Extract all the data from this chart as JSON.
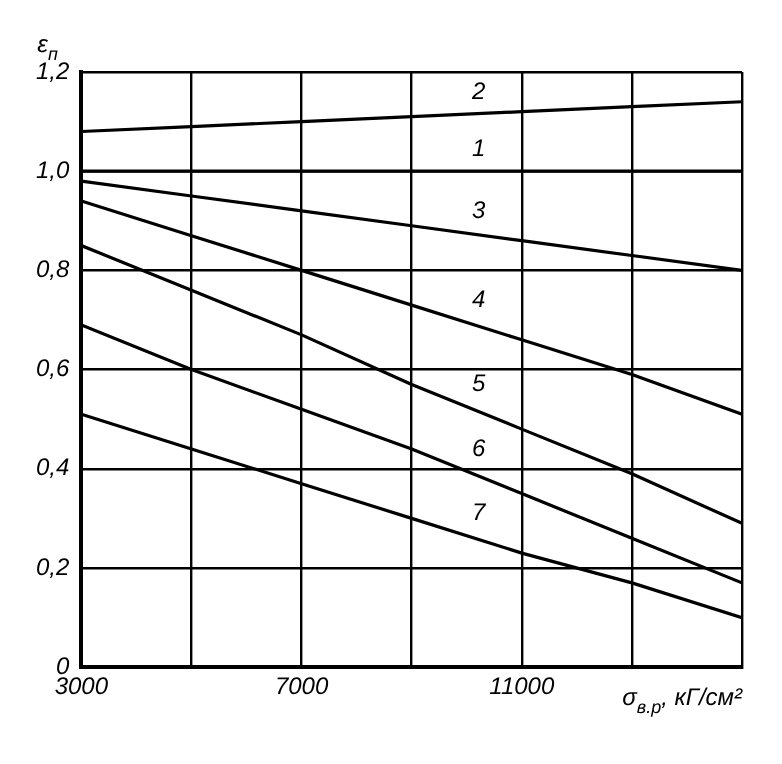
{
  "chart_data": {
    "type": "line",
    "xlabel": "σ$_{в.р}$, кГ/см²",
    "ylabel": "ε$_{п}$",
    "x": [
      3000,
      5000,
      7000,
      9000,
      11000,
      13000,
      15000
    ],
    "series": [
      {
        "name": "1",
        "color": "#000000",
        "values": [
          1.0,
          1.0,
          1.0,
          1.0,
          1.0,
          1.0,
          1.0
        ]
      },
      {
        "name": "2",
        "color": "#000000",
        "values": [
          1.08,
          1.09,
          1.1,
          1.11,
          1.12,
          1.13,
          1.14
        ]
      },
      {
        "name": "3",
        "color": "#000000",
        "values": [
          0.98,
          0.95,
          0.92,
          0.89,
          0.86,
          0.83,
          0.8
        ]
      },
      {
        "name": "4",
        "color": "#000000",
        "values": [
          0.94,
          0.87,
          0.8,
          0.73,
          0.66,
          0.59,
          0.51
        ]
      },
      {
        "name": "5",
        "color": "#000000",
        "values": [
          0.85,
          0.76,
          0.67,
          0.57,
          0.48,
          0.39,
          0.29
        ]
      },
      {
        "name": "6",
        "color": "#000000",
        "values": [
          0.69,
          0.6,
          0.52,
          0.44,
          0.35,
          0.26,
          0.17
        ]
      },
      {
        "name": "7",
        "color": "#000000",
        "values": [
          0.51,
          0.44,
          0.37,
          0.3,
          0.23,
          0.17,
          0.1
        ]
      }
    ],
    "xlim": [
      3000,
      15000
    ],
    "xticks": [
      3000,
      {
        "value": 5000,
        "label": null
      },
      7000,
      {
        "value": 9000,
        "label": null
      },
      11000,
      {
        "value": 13000,
        "label": null
      },
      {
        "value": 15000,
        "label": null
      }
    ],
    "ylim": [
      0,
      1.2
    ],
    "yticks": [
      0,
      {
        "value": 0.2,
        "label": "0,2"
      },
      {
        "value": 0.4,
        "label": "0,4"
      },
      {
        "value": 0.6,
        "label": "0,6"
      },
      {
        "value": 0.8,
        "label": "0,8"
      },
      {
        "value": 1.0,
        "label": "1,0"
      },
      {
        "value": 1.2,
        "label": "1,2"
      }
    ],
    "grid": true,
    "legend": false,
    "marker": "none",
    "line_style": "solid"
  }
}
